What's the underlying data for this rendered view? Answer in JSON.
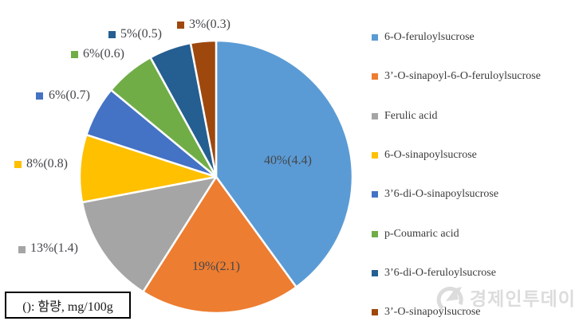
{
  "chart_data": {
    "type": "pie",
    "title": "",
    "legend_position": "right",
    "direction": "clockwise",
    "start_angle_deg": 0,
    "unit_note": "(): 함량, mg/100g",
    "slices": [
      {
        "label": "6-O-feruloylsucrose",
        "percent": 40,
        "value": 4.4,
        "display": "40%(4.4)",
        "color": "#5B9BD5",
        "label_placement": "inside"
      },
      {
        "label": "3’-O-sinapoyl-6-O-feruloylsucrose",
        "percent": 19,
        "value": 2.1,
        "display": "19%(2.1)",
        "color": "#ED7D31",
        "label_placement": "inside"
      },
      {
        "label": "Ferulic acid",
        "percent": 13,
        "value": 1.4,
        "display": "13%(1.4)",
        "color": "#A5A5A5",
        "label_placement": "outside"
      },
      {
        "label": "6-O-sinapoylsucrose",
        "percent": 8,
        "value": 0.8,
        "display": "8%(0.8)",
        "color": "#FFC000",
        "label_placement": "outside"
      },
      {
        "label": "3’6-di-O-sinapoylsucrose",
        "percent": 6,
        "value": 0.7,
        "display": "6%(0.7)",
        "color": "#4472C4",
        "label_placement": "outside"
      },
      {
        "label": "p-Coumaric acid",
        "percent": 6,
        "value": 0.6,
        "display": "6%(0.6)",
        "color": "#70AD47",
        "label_placement": "outside"
      },
      {
        "label": "3’6-di-O-feruloylsucrose",
        "percent": 5,
        "value": 0.5,
        "display": "5%(0.5)",
        "color": "#255E91",
        "label_placement": "outside"
      },
      {
        "label": "3’-O-sinapoylsucrose",
        "percent": 3,
        "value": 0.3,
        "display": "3%(0.3)",
        "color": "#9E480E",
        "label_placement": "outside"
      }
    ]
  },
  "note_box": {
    "text": "(): 함량, mg/100g"
  },
  "watermark": {
    "text": "경제인투데이",
    "color": "#dcdcdc"
  }
}
